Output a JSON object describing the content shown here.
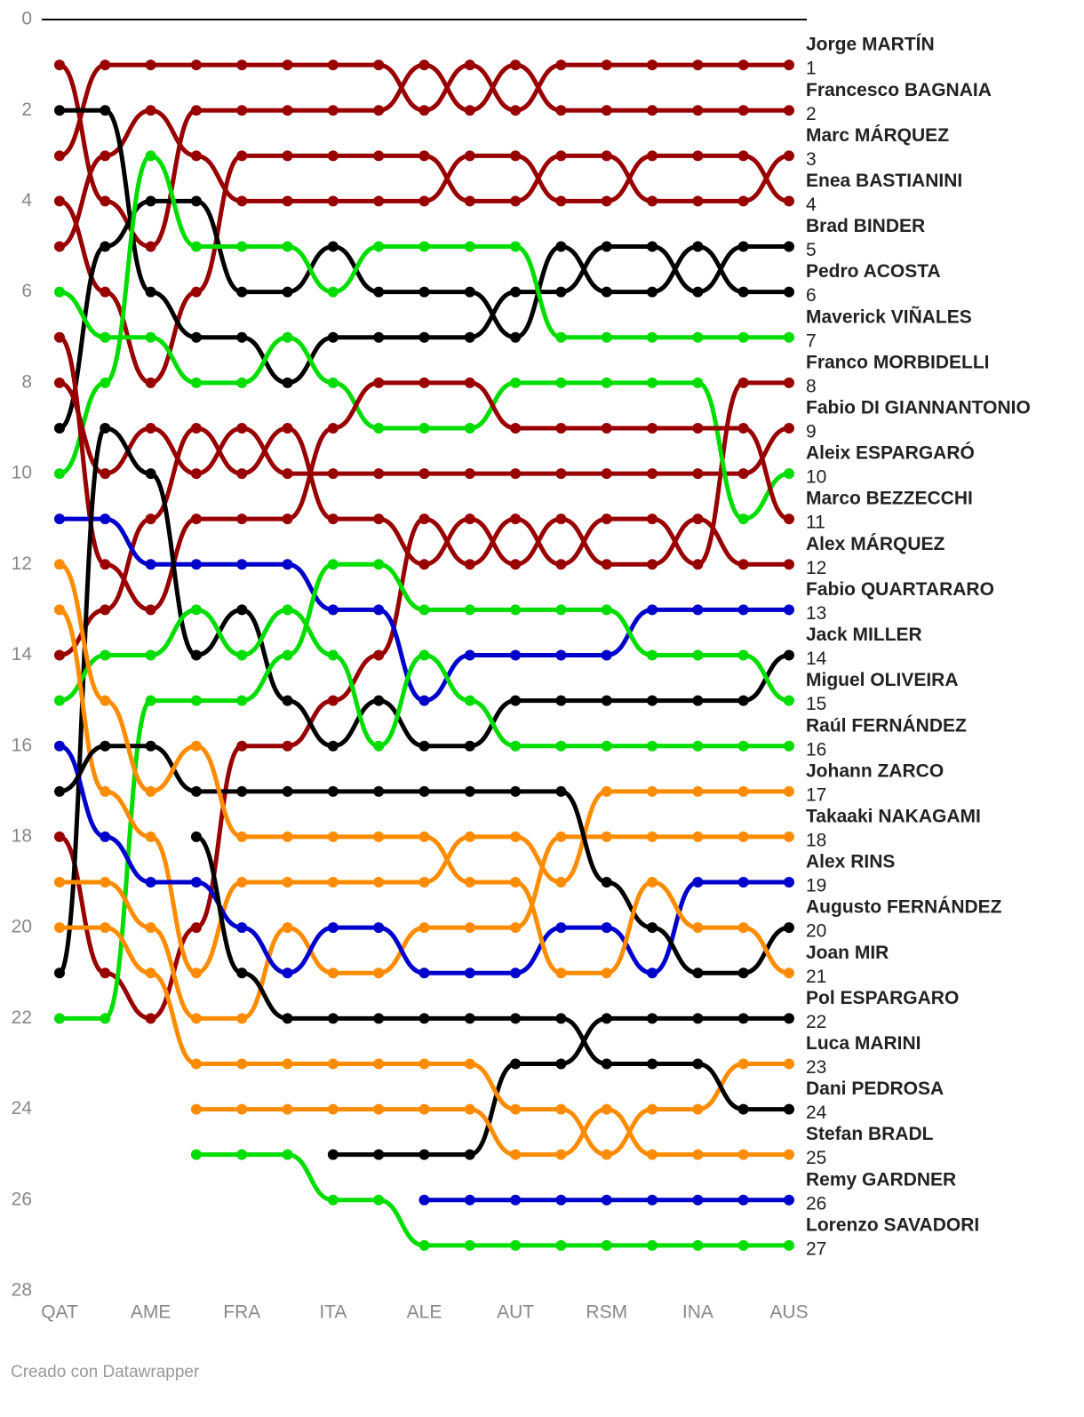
{
  "chart_data": {
    "type": "bump",
    "source": "Creado con Datawrapper",
    "categories": [
      "QAT",
      null,
      "AME",
      null,
      "FRA",
      null,
      "ITA",
      null,
      "ALE",
      null,
      "AUT",
      null,
      "RSM",
      null,
      "INA",
      null,
      "AUS"
    ],
    "ylim": [
      0,
      28
    ],
    "y_reversed": true,
    "yticks": [
      0,
      2,
      4,
      6,
      8,
      10,
      12,
      14,
      16,
      18,
      20,
      22,
      24,
      26,
      28
    ],
    "series": [
      {
        "name": "Jorge MARTÍN",
        "color": "#990000",
        "values": [
          3,
          1,
          1,
          1,
          1,
          1,
          1,
          1,
          2,
          1,
          2,
          1,
          1,
          1,
          1,
          1,
          1
        ]
      },
      {
        "name": "Francesco BAGNAIA",
        "color": "#990000",
        "values": [
          1,
          4,
          5,
          2,
          2,
          2,
          2,
          2,
          1,
          2,
          1,
          2,
          2,
          2,
          2,
          2,
          2
        ]
      },
      {
        "name": "Marc MÁRQUEZ",
        "color": "#990000",
        "values": [
          4,
          6,
          8,
          6,
          3,
          3,
          3,
          3,
          3,
          4,
          4,
          3,
          3,
          4,
          4,
          4,
          3
        ]
      },
      {
        "name": "Enea BASTIANINI",
        "color": "#990000",
        "values": [
          5,
          3,
          2,
          3,
          4,
          4,
          4,
          4,
          4,
          3,
          3,
          4,
          4,
          3,
          3,
          3,
          4
        ]
      },
      {
        "name": "Brad BINDER",
        "color": "#000000",
        "values": [
          2,
          2,
          6,
          7,
          7,
          8,
          7,
          7,
          7,
          7,
          6,
          6,
          5,
          5,
          6,
          5,
          5
        ]
      },
      {
        "name": "Pedro ACOSTA",
        "color": "#000000",
        "values": [
          9,
          5,
          4,
          4,
          6,
          6,
          5,
          6,
          6,
          6,
          7,
          5,
          6,
          6,
          5,
          6,
          6
        ]
      },
      {
        "name": "Maverick VIÑALES",
        "color": "#00dd00",
        "values": [
          10,
          8,
          3,
          5,
          5,
          5,
          6,
          5,
          5,
          5,
          5,
          7,
          7,
          7,
          7,
          7,
          7
        ]
      },
      {
        "name": "Franco MORBIDELLI",
        "color": "#990000",
        "values": [
          18,
          21,
          22,
          20,
          16,
          16,
          15,
          14,
          11,
          12,
          11,
          12,
          11,
          11,
          12,
          8,
          8
        ]
      },
      {
        "name": "Fabio DI GIANNANTONIO",
        "color": "#990000",
        "values": [
          8,
          10,
          9,
          10,
          9,
          10,
          10,
          10,
          10,
          10,
          10,
          10,
          10,
          10,
          10,
          10,
          9
        ]
      },
      {
        "name": "Aleix ESPARGARÓ",
        "color": "#00dd00",
        "values": [
          6,
          7,
          7,
          8,
          8,
          7,
          8,
          9,
          9,
          9,
          8,
          8,
          8,
          8,
          8,
          11,
          10
        ]
      },
      {
        "name": "Marco BEZZECCHI",
        "color": "#990000",
        "values": [
          7,
          12,
          13,
          11,
          11,
          11,
          9,
          8,
          8,
          8,
          9,
          9,
          9,
          9,
          9,
          9,
          11
        ]
      },
      {
        "name": "Alex MÁRQUEZ",
        "color": "#990000",
        "values": [
          14,
          13,
          11,
          9,
          10,
          9,
          11,
          11,
          12,
          11,
          12,
          11,
          12,
          12,
          11,
          12,
          12
        ]
      },
      {
        "name": "Fabio QUARTARARO",
        "color": "#0000cc",
        "values": [
          11,
          11,
          12,
          12,
          12,
          12,
          13,
          13,
          15,
          14,
          14,
          14,
          14,
          13,
          13,
          13,
          13
        ]
      },
      {
        "name": "Jack MILLER",
        "color": "#000000",
        "values": [
          21,
          9,
          10,
          14,
          13,
          15,
          16,
          15,
          16,
          16,
          15,
          15,
          15,
          15,
          15,
          15,
          14
        ]
      },
      {
        "name": "Miguel OLIVEIRA",
        "color": "#00dd00",
        "values": [
          22,
          22,
          15,
          15,
          15,
          14,
          12,
          12,
          13,
          13,
          13,
          13,
          13,
          14,
          14,
          14,
          15
        ]
      },
      {
        "name": "Raúl FERNÁNDEZ",
        "color": "#00dd00",
        "values": [
          15,
          14,
          14,
          13,
          14,
          13,
          14,
          16,
          14,
          15,
          16,
          16,
          16,
          16,
          16,
          16,
          16
        ]
      },
      {
        "name": "Johann ZARCO",
        "color": "#ff8c00",
        "values": [
          13,
          17,
          18,
          21,
          19,
          19,
          19,
          19,
          19,
          18,
          18,
          19,
          17,
          17,
          17,
          17,
          17
        ]
      },
      {
        "name": "Takaaki NAKAGAMI",
        "color": "#ff8c00",
        "values": [
          19,
          19,
          20,
          22,
          22,
          20,
          21,
          21,
          20,
          20,
          20,
          18,
          18,
          18,
          18,
          18,
          18
        ]
      },
      {
        "name": "Alex RINS",
        "color": "#0000cc",
        "values": [
          16,
          18,
          19,
          19,
          20,
          21,
          20,
          20,
          21,
          21,
          21,
          20,
          20,
          21,
          19,
          19,
          19
        ]
      },
      {
        "name": "Augusto FERNÁNDEZ",
        "color": "#000000",
        "values": [
          17,
          16,
          16,
          17,
          17,
          17,
          17,
          17,
          17,
          17,
          17,
          17,
          19,
          20,
          21,
          21,
          20
        ]
      },
      {
        "name": "Joan MIR",
        "color": "#ff8c00",
        "values": [
          12,
          15,
          17,
          16,
          18,
          18,
          18,
          18,
          18,
          19,
          19,
          21,
          21,
          19,
          20,
          20,
          21
        ]
      },
      {
        "name": "Pol ESPARGARO",
        "color": "#000000",
        "values": [
          null,
          null,
          null,
          null,
          null,
          null,
          25,
          25,
          25,
          25,
          23,
          23,
          22,
          22,
          22,
          22,
          22
        ]
      },
      {
        "name": "Luca MARINI",
        "color": "#ff8c00",
        "values": [
          20,
          20,
          21,
          23,
          23,
          23,
          23,
          23,
          23,
          23,
          24,
          24,
          25,
          24,
          24,
          23,
          23
        ]
      },
      {
        "name": "Dani PEDROSA",
        "color": "#000000",
        "values": [
          null,
          null,
          null,
          18,
          21,
          22,
          22,
          22,
          22,
          22,
          22,
          22,
          23,
          23,
          23,
          24,
          24
        ]
      },
      {
        "name": "Stefan BRADL",
        "color": "#ff8c00",
        "values": [
          null,
          null,
          null,
          24,
          24,
          24,
          24,
          24,
          24,
          24,
          25,
          25,
          24,
          25,
          25,
          25,
          25
        ]
      },
      {
        "name": "Remy GARDNER",
        "color": "#0000cc",
        "values": [
          null,
          null,
          null,
          null,
          null,
          null,
          null,
          null,
          26,
          26,
          26,
          26,
          26,
          26,
          26,
          26,
          26
        ]
      },
      {
        "name": "Lorenzo SAVADORI",
        "color": "#00dd00",
        "values": [
          null,
          null,
          null,
          25,
          25,
          25,
          26,
          26,
          27,
          27,
          27,
          27,
          27,
          27,
          27,
          27,
          27
        ]
      }
    ]
  }
}
